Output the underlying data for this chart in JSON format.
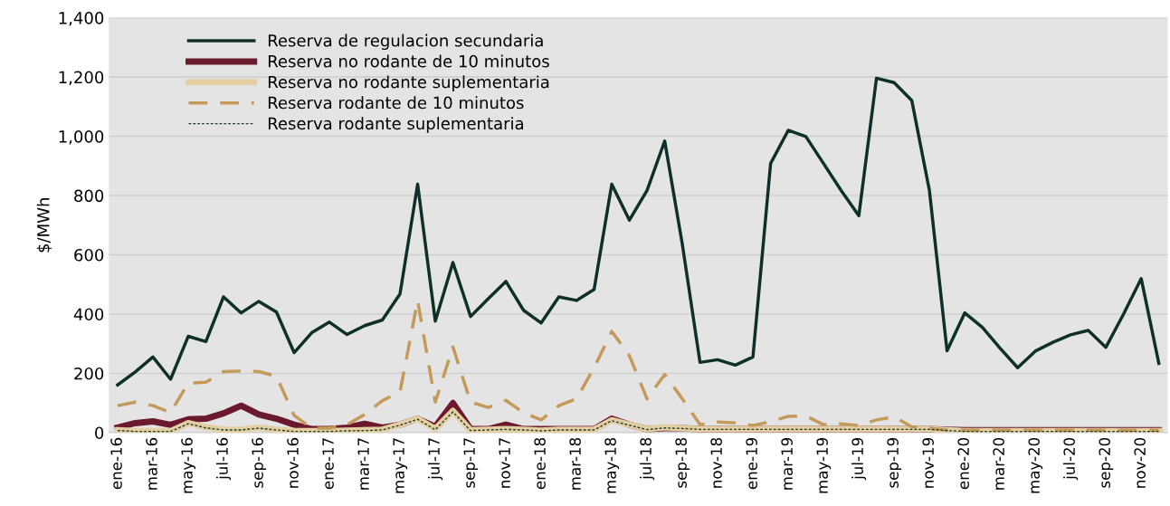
{
  "chart_data": {
    "type": "line",
    "ylabel": "$/MWh",
    "categories": [
      "ene-16",
      null,
      "mar-16",
      null,
      "may-16",
      null,
      "jul-16",
      null,
      "sep-16",
      null,
      "nov-16",
      null,
      "ene-17",
      null,
      "mar-17",
      null,
      "may-17",
      null,
      "jul-17",
      null,
      "sep-17",
      null,
      "nov-17",
      null,
      "ene-18",
      null,
      "mar-18",
      null,
      "may-18",
      null,
      "jul-18",
      null,
      "sep-18",
      null,
      "nov-18",
      null,
      "ene-19",
      null,
      "mar-19",
      null,
      "may-19",
      null,
      "jul-19",
      null,
      "sep-19",
      null,
      "nov-19",
      null,
      "ene-20",
      null,
      "mar-20",
      null,
      "may-20",
      null,
      "jul-20",
      null,
      "sep-20",
      null,
      "nov-20",
      null
    ],
    "ylim": [
      0,
      1400
    ],
    "yticks": [
      0,
      200,
      400,
      600,
      {
        "value": 800,
        "label": "800"
      },
      {
        "value": 1000,
        "label": "1,000"
      },
      {
        "value": 1200,
        "label": "1,200"
      },
      {
        "value": 1400,
        "label": "1,400"
      }
    ],
    "grid": "y",
    "legend": "top left",
    "series": [
      {
        "name": "Reserva de regulacion secundaria",
        "color": "#0f3028",
        "line_style": "solid",
        "values": [
          161,
          205,
          255,
          180,
          325,
          307,
          458,
          404,
          443,
          407,
          270,
          337,
          373,
          331,
          361,
          380,
          468,
          838,
          376,
          574,
          392,
          452,
          510,
          413,
          370,
          458,
          446,
          483,
          838,
          717,
          817,
          984,
          635,
          237,
          246,
          228,
          255,
          908,
          1020,
          999,
          908,
          817,
          732,
          1196,
          1181,
          1121,
          817,
          276,
          404,
          355,
          285,
          219,
          275,
          305,
          330,
          345,
          288,
          400,
          520,
          234
        ]
      },
      {
        "name": "Reserva no rodante de 10 minutos",
        "color": "#6b1a2e",
        "line_style": "solid",
        "values": [
          17,
          32,
          38,
          26,
          45,
          47,
          65,
          91,
          61,
          47,
          27,
          12,
          12,
          17,
          30,
          17,
          27,
          47,
          20,
          100,
          12,
          12,
          27,
          12,
          12,
          12,
          12,
          12,
          47,
          27,
          12,
          15,
          15,
          12,
          12,
          12,
          12,
          12,
          12,
          12,
          12,
          12,
          12,
          12,
          12,
          12,
          12,
          10,
          8,
          8,
          8,
          8,
          8,
          8,
          8,
          8,
          8,
          8,
          8,
          8
        ]
      },
      {
        "name": "Reserva no rodante suplementaria",
        "color": "#e3cfa2",
        "line_style": "solid",
        "values": [
          8,
          5,
          5,
          5,
          32,
          18,
          10,
          10,
          17,
          10,
          5,
          5,
          5,
          7,
          8,
          10,
          27,
          47,
          12,
          73,
          8,
          10,
          12,
          10,
          7,
          10,
          10,
          10,
          42,
          27,
          12,
          18,
          15,
          12,
          12,
          12,
          12,
          12,
          12,
          12,
          12,
          12,
          12,
          12,
          12,
          12,
          12,
          8,
          5,
          5,
          5,
          5,
          5,
          5,
          5,
          5,
          5,
          5,
          5,
          5
        ]
      },
      {
        "name": "Reserva rodante de 10 minutos",
        "color": "#c49a5a",
        "line_style": "dashed",
        "values": [
          91,
          103,
          91,
          68,
          167,
          170,
          206,
          208,
          206,
          190,
          58,
          15,
          15,
          27,
          61,
          108,
          137,
          446,
          103,
          289,
          103,
          85,
          109,
          67,
          43,
          91,
          114,
          219,
          342,
          260,
          114,
          196,
          114,
          27,
          36,
          33,
          24,
          37,
          55,
          56,
          27,
          30,
          24,
          43,
          53,
          20,
          15,
          8,
          8,
          8,
          8,
          8,
          8,
          8,
          8,
          8,
          8,
          8,
          8,
          8
        ]
      },
      {
        "name": "Reserva rodante suplementaria",
        "color": "#1f3b2d",
        "line_style": "dotted",
        "values": [
          7,
          4,
          4,
          4,
          30,
          16,
          9,
          9,
          15,
          9,
          4,
          4,
          4,
          6,
          7,
          9,
          25,
          45,
          10,
          70,
          7,
          9,
          11,
          9,
          6,
          9,
          9,
          9,
          40,
          25,
          10,
          16,
          14,
          11,
          11,
          11,
          11,
          11,
          11,
          11,
          11,
          11,
          11,
          11,
          11,
          11,
          11,
          7,
          4,
          4,
          4,
          4,
          4,
          4,
          4,
          4,
          4,
          4,
          4,
          4
        ]
      }
    ]
  }
}
